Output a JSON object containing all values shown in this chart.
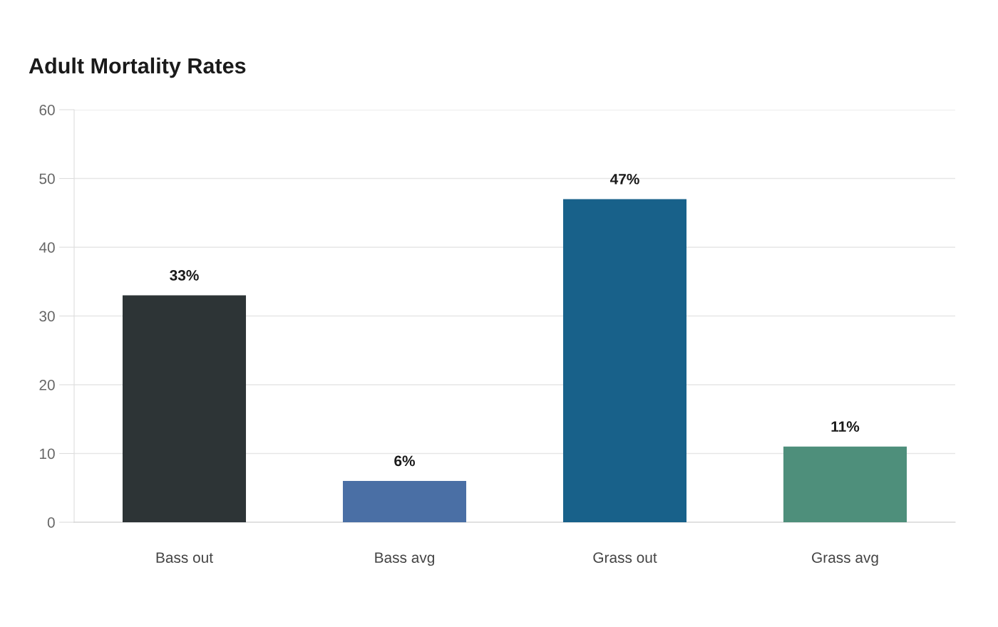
{
  "chart_data": {
    "type": "bar",
    "title": "Adult Mortality Rates",
    "categories": [
      "Bass out",
      "Bass avg",
      "Grass out",
      "Grass avg"
    ],
    "values": [
      33,
      6,
      47,
      11
    ],
    "colors": [
      "#2d3436",
      "#4a6fa5",
      "#18618a",
      "#4e8f7b"
    ],
    "value_labels": [
      "33%",
      "6%",
      "47%",
      "11%"
    ],
    "ylim": [
      0,
      60
    ],
    "yticks": [
      0,
      10,
      20,
      30,
      40,
      50,
      60
    ],
    "grid": "y",
    "legend": false
  }
}
